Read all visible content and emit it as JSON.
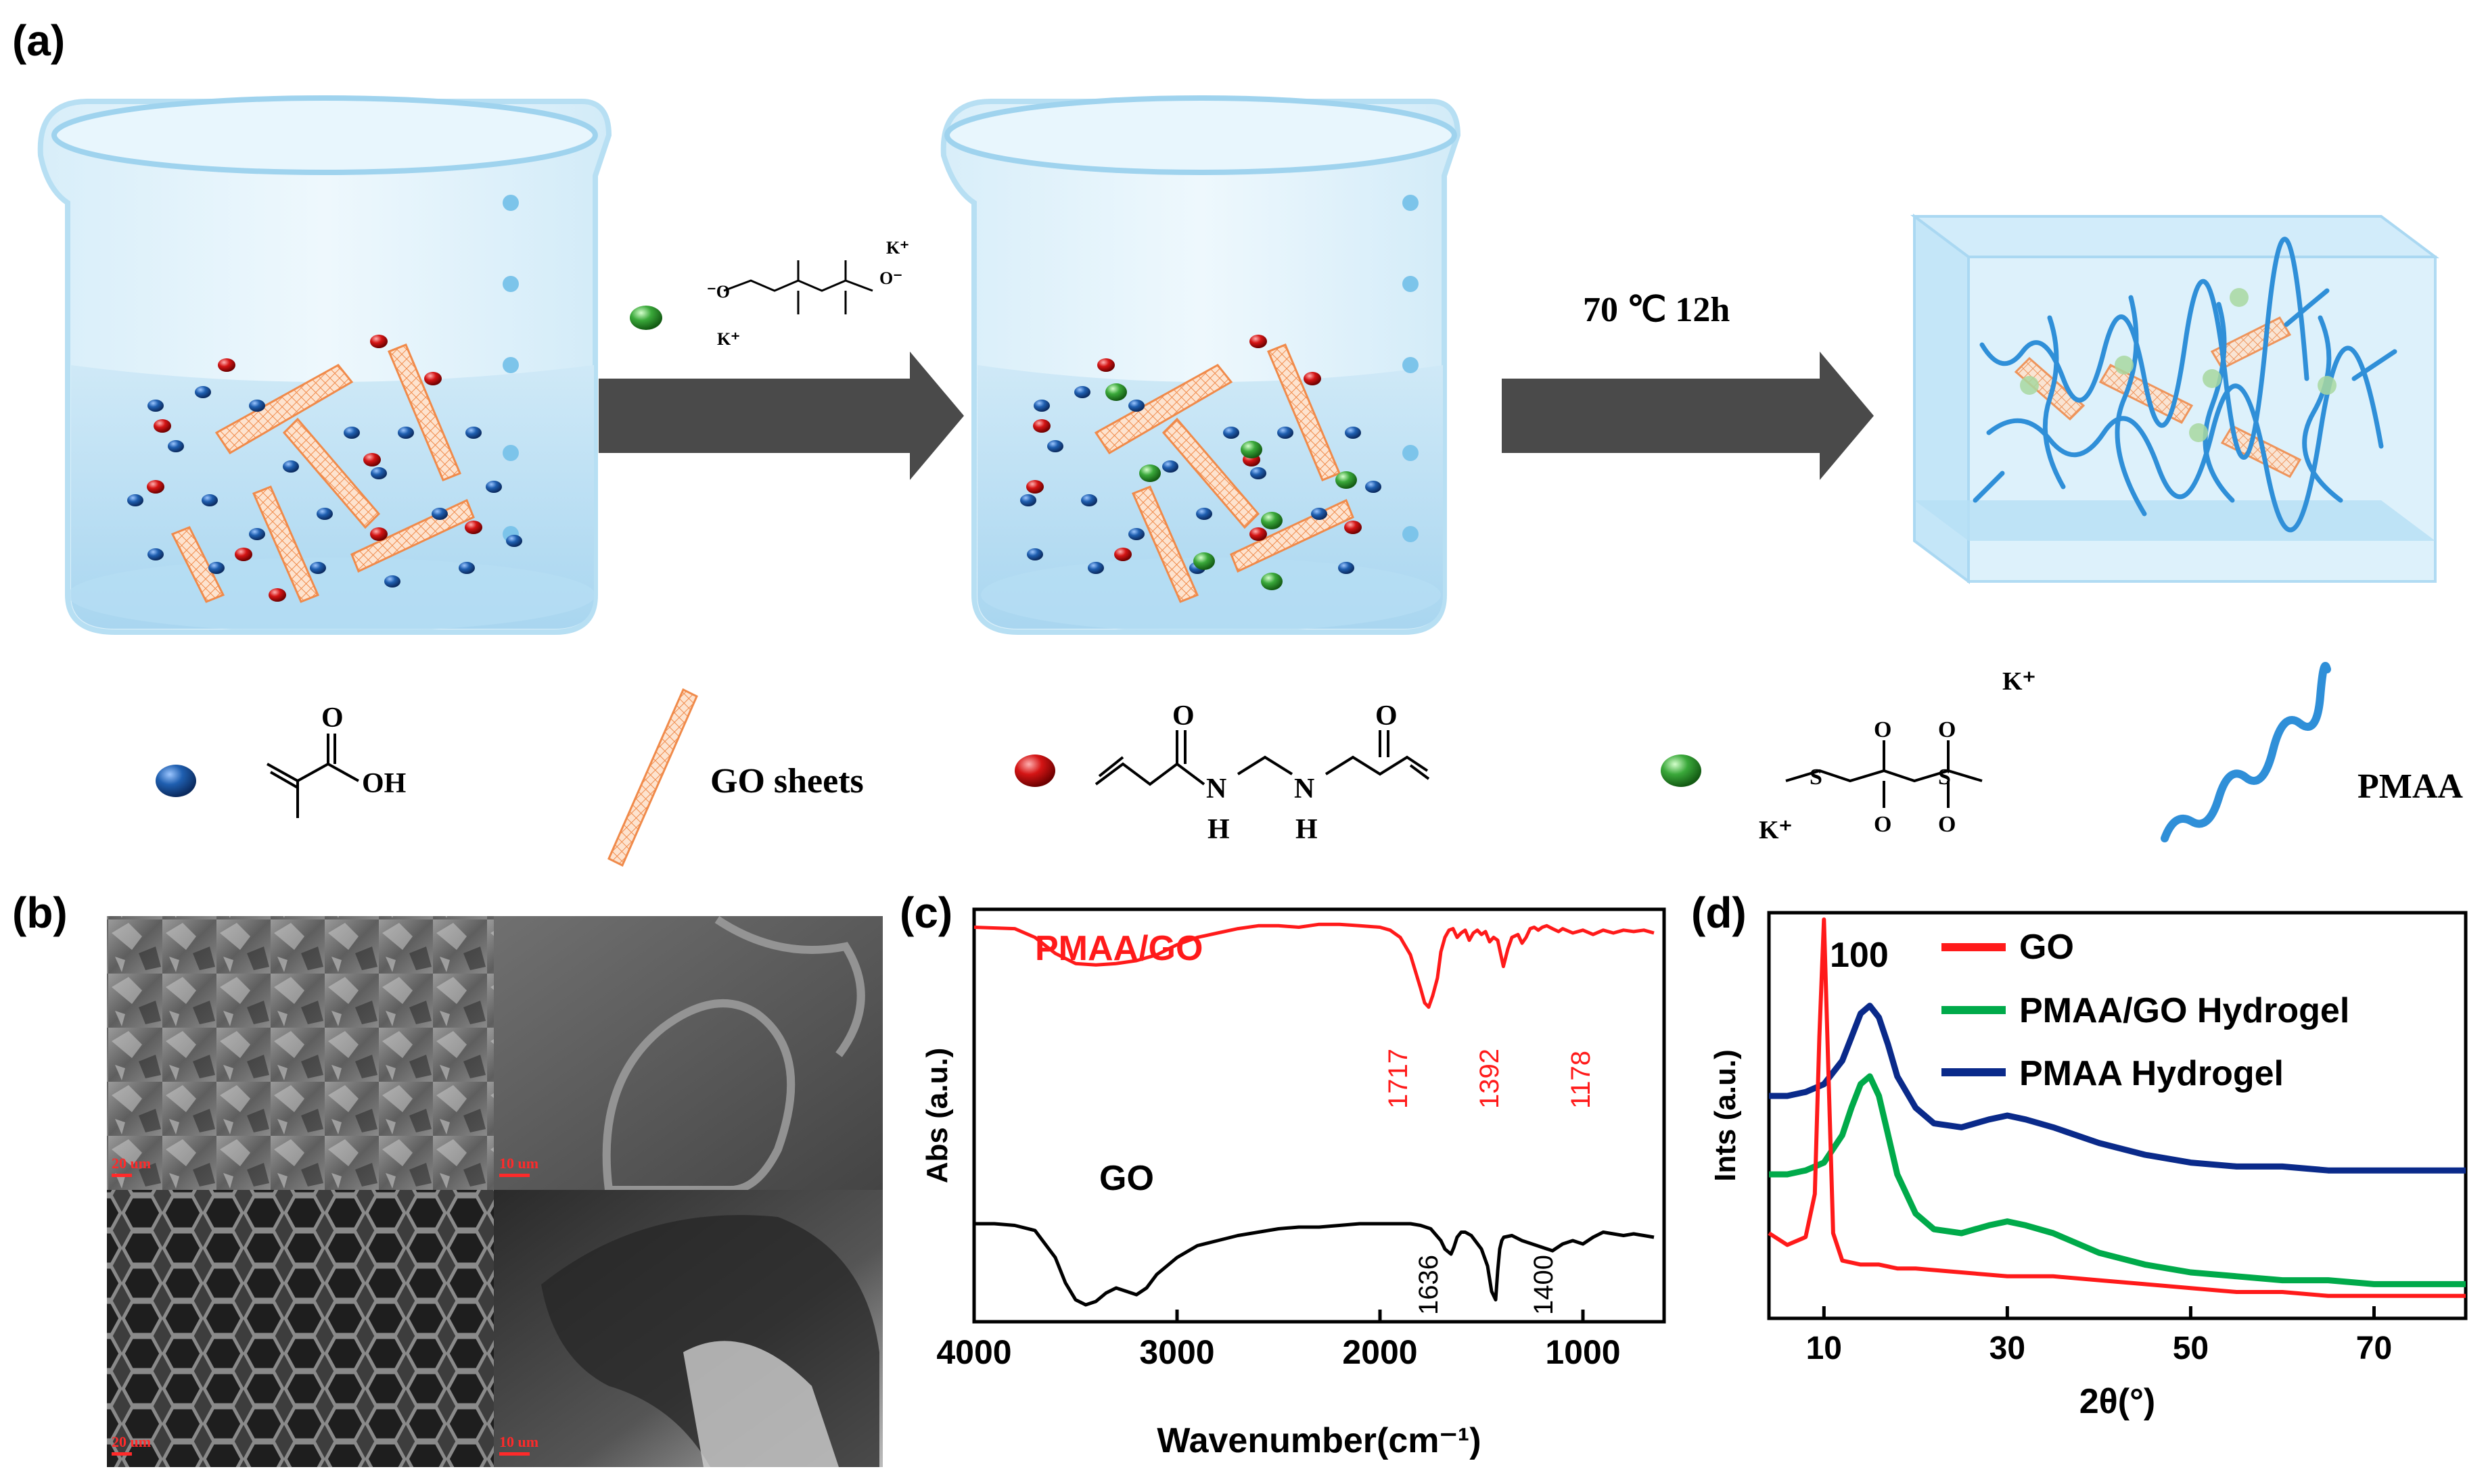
{
  "panels": {
    "a": "(a)",
    "b": "(b)",
    "c": "(c)",
    "d": "(d)"
  },
  "scheme": {
    "step1_reagent": {
      "k_plus_top": "K⁺",
      "k_plus_bottom": "K⁺",
      "o_minus_left": "⁻O",
      "o_minus_right": "O⁻"
    },
    "step2_condition": "70 ℃ 12h"
  },
  "legend": {
    "methacrylic_acid_oh": "OH",
    "methacrylic_acid_o": "O",
    "go_sheets": "GO sheets",
    "mba_nh_1": "N",
    "mba_h_1": "H",
    "mba_nh_2": "N",
    "mba_h_2": "H",
    "kps_k_top": "K⁺",
    "kps_k_bottom": "K⁺",
    "pmaa": "PMAA"
  },
  "sem": {
    "scale_tl": "20 um",
    "scale_tr": "10 um",
    "scale_bl": "20 um",
    "scale_br": "10 um"
  },
  "colors": {
    "red_series": "#ff1a1a",
    "green_series": "#00aa4a",
    "navy_series": "#0a2a8a",
    "black_series": "#000000",
    "arrow": "#4a4a4a",
    "beaker_liquid": "#cfe9f7",
    "monomer_blue": "#1f5fb0",
    "crosslinker_red": "#d41515",
    "initiator_green": "#3aa83a",
    "go_sheet": "#f4a06a",
    "pmaa_chain": "#2f8fd8"
  },
  "chart_data": [
    {
      "panel": "c",
      "type": "line",
      "xlabel": "Wavenumber(cm⁻¹)",
      "ylabel": "Abs (a.u.)",
      "xlim": [
        4000,
        600
      ],
      "x_ticks": [
        "4000",
        "3000",
        "2000",
        "1000"
      ],
      "series": [
        {
          "name": "PMAA/GO",
          "color": "#ff1a1a",
          "x": [
            4000,
            3800,
            3700,
            3600,
            3500,
            3400,
            3300,
            3200,
            3100,
            3000,
            2900,
            2800,
            2700,
            2600,
            2500,
            2400,
            2300,
            2200,
            2100,
            2000,
            1950,
            1900,
            1850,
            1800,
            1780,
            1760,
            1740,
            1717,
            1700,
            1680,
            1660,
            1640,
            1620,
            1600,
            1580,
            1560,
            1540,
            1520,
            1500,
            1480,
            1460,
            1440,
            1420,
            1392,
            1370,
            1350,
            1320,
            1300,
            1280,
            1260,
            1240,
            1220,
            1200,
            1178,
            1150,
            1120,
            1100,
            1050,
            1000,
            950,
            900,
            850,
            800,
            750,
            700,
            650
          ],
          "y": [
            0.97,
            0.96,
            0.9,
            0.79,
            0.72,
            0.71,
            0.72,
            0.74,
            0.78,
            0.85,
            0.9,
            0.93,
            0.96,
            0.98,
            0.98,
            0.97,
            0.99,
            0.99,
            0.98,
            0.97,
            0.95,
            0.9,
            0.78,
            0.55,
            0.45,
            0.42,
            0.5,
            0.62,
            0.8,
            0.9,
            0.95,
            0.96,
            0.9,
            0.93,
            0.95,
            0.88,
            0.93,
            0.95,
            0.92,
            0.94,
            0.87,
            0.9,
            0.88,
            0.7,
            0.82,
            0.9,
            0.92,
            0.86,
            0.9,
            0.96,
            0.97,
            0.95,
            0.97,
            0.98,
            0.96,
            0.94,
            0.96,
            0.93,
            0.95,
            0.92,
            0.95,
            0.93,
            0.95,
            0.94,
            0.95,
            0.93
          ]
        },
        {
          "name": "GO",
          "color": "#000000",
          "x": [
            4000,
            3900,
            3800,
            3700,
            3600,
            3550,
            3500,
            3450,
            3400,
            3350,
            3300,
            3250,
            3200,
            3150,
            3100,
            3000,
            2900,
            2800,
            2700,
            2600,
            2500,
            2400,
            2300,
            2200,
            2100,
            2000,
            1900,
            1850,
            1800,
            1750,
            1700,
            1680,
            1650,
            1636,
            1620,
            1600,
            1580,
            1550,
            1500,
            1470,
            1450,
            1430,
            1420,
            1410,
            1400,
            1390,
            1350,
            1300,
            1250,
            1200,
            1150,
            1100,
            1050,
            1000,
            950,
            900,
            850,
            800,
            750,
            700,
            650
          ],
          "y": [
            0.5,
            0.5,
            0.49,
            0.46,
            0.3,
            0.15,
            0.05,
            0.02,
            0.04,
            0.09,
            0.12,
            0.1,
            0.08,
            0.12,
            0.2,
            0.3,
            0.37,
            0.4,
            0.43,
            0.45,
            0.47,
            0.48,
            0.48,
            0.49,
            0.5,
            0.5,
            0.5,
            0.5,
            0.49,
            0.47,
            0.4,
            0.35,
            0.32,
            0.36,
            0.42,
            0.45,
            0.45,
            0.43,
            0.35,
            0.25,
            0.1,
            0.05,
            0.22,
            0.35,
            0.4,
            0.42,
            0.43,
            0.4,
            0.38,
            0.36,
            0.34,
            0.38,
            0.4,
            0.38,
            0.42,
            0.45,
            0.44,
            0.43,
            0.44,
            0.43,
            0.42
          ]
        }
      ],
      "annotations": [
        "1717",
        "1392",
        "1178",
        "1636",
        "1400"
      ]
    },
    {
      "panel": "d",
      "type": "line",
      "xlabel": "2θ(°)",
      "ylabel": "Ints (a.u.)",
      "xlim": [
        4,
        80
      ],
      "x_ticks": [
        "10",
        "30",
        "50",
        "70"
      ],
      "series": [
        {
          "name": "GO",
          "color": "#ff1a1a",
          "x": [
            4,
            6,
            8,
            9,
            9.5,
            10,
            10.5,
            11,
            12,
            14,
            16,
            18,
            20,
            25,
            30,
            35,
            40,
            45,
            50,
            55,
            60,
            65,
            70,
            75,
            80
          ],
          "y": [
            0.2,
            0.17,
            0.19,
            0.3,
            0.7,
            1.0,
            0.6,
            0.2,
            0.13,
            0.12,
            0.12,
            0.11,
            0.11,
            0.1,
            0.09,
            0.09,
            0.08,
            0.07,
            0.06,
            0.05,
            0.05,
            0.04,
            0.04,
            0.04,
            0.04
          ]
        },
        {
          "name": "PMAA/GO Hydrogel",
          "color": "#00aa4a",
          "x": [
            4,
            6,
            8,
            10,
            12,
            13,
            14,
            15,
            16,
            17,
            18,
            20,
            22,
            25,
            28,
            30,
            32,
            35,
            40,
            45,
            50,
            55,
            60,
            65,
            70,
            75,
            80
          ],
          "y": [
            0.35,
            0.35,
            0.36,
            0.38,
            0.45,
            0.52,
            0.58,
            0.6,
            0.55,
            0.45,
            0.35,
            0.25,
            0.21,
            0.2,
            0.22,
            0.23,
            0.22,
            0.2,
            0.15,
            0.12,
            0.1,
            0.09,
            0.08,
            0.08,
            0.07,
            0.07,
            0.07
          ]
        },
        {
          "name": "PMAA Hydrogel",
          "color": "#0a2a8a",
          "x": [
            4,
            6,
            8,
            10,
            12,
            13,
            14,
            15,
            16,
            17,
            18,
            20,
            22,
            25,
            28,
            30,
            32,
            35,
            40,
            45,
            50,
            55,
            60,
            65,
            70,
            75,
            80
          ],
          "y": [
            0.55,
            0.55,
            0.56,
            0.58,
            0.64,
            0.7,
            0.76,
            0.78,
            0.75,
            0.68,
            0.6,
            0.52,
            0.48,
            0.47,
            0.49,
            0.5,
            0.49,
            0.47,
            0.43,
            0.4,
            0.38,
            0.37,
            0.37,
            0.36,
            0.36,
            0.36,
            0.36
          ]
        }
      ],
      "annotations": [
        "100"
      ]
    }
  ]
}
